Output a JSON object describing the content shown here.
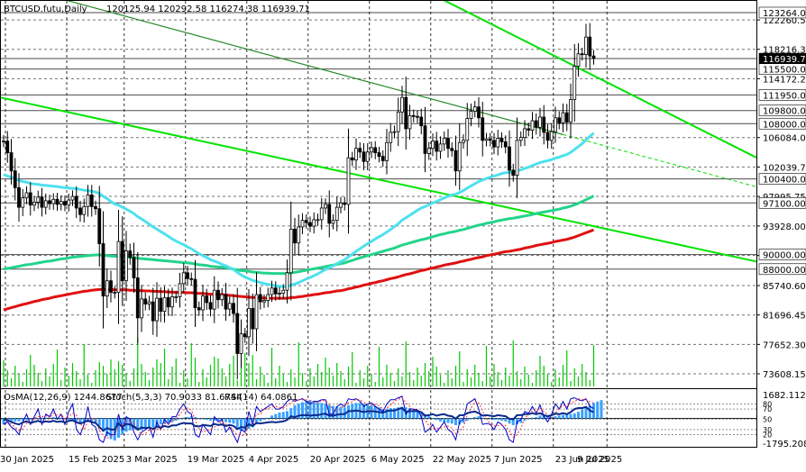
{
  "header": {
    "symbol": "BTCUSD.futu,Daily",
    "ohlc": "120125.94 120292.58 116274.38 116939.71"
  },
  "indicator_header": {
    "osma": "OsMA(12,26,9) 1244.8677",
    "stoch": "Stoch(5,3,3) 70.9033 81.6744",
    "rsi": "RSI(14) 64.0861"
  },
  "colors": {
    "background": "#ffffff",
    "grid": "#000000",
    "bull_candle": "#000000",
    "bear_candle": "#000000",
    "channel": "#00e400",
    "ema50": "#4de1ee",
    "ema144": "#22d48a",
    "ema200": "#e01010",
    "level_line": "#000000",
    "volume": "#00c800",
    "osma_hist": "#3aa0ff",
    "stoch_main": "#0000c8",
    "stoch_signal": "#ff3030",
    "rsi": "#0a2a8a"
  },
  "chart_data": {
    "type": "candlestick",
    "timeframe": "Daily",
    "ylim": [
      72000,
      124500
    ],
    "y_ticks": [
      "122260.50",
      "118216.35",
      "114172.20",
      "106084.00",
      "102039.75",
      "97995.75",
      "93928.00",
      "89883.75",
      "85740.60",
      "81696.45",
      "77652.30",
      "73608.15"
    ],
    "x_ticks": [
      "30 Jan 2025",
      "15 Feb 2025",
      "3 Mar 2025",
      "19 Mar 2025",
      "4 Apr 2025",
      "20 Apr 2025",
      "6 May 2025",
      "22 May 2025",
      "7 Jun 2025",
      "23 Jun 2025",
      "9 Jul 2025"
    ],
    "levels": [
      {
        "label": "123264.00",
        "value": 123264
      },
      {
        "label": "116939.71",
        "value": 116939.71,
        "current": true
      },
      {
        "label": "115500.00",
        "value": 115500
      },
      {
        "label": "111950.00",
        "value": 111950
      },
      {
        "label": "109800.00",
        "value": 109800
      },
      {
        "label": "108000.00",
        "value": 108000
      },
      {
        "label": "100400.00",
        "value": 100400
      },
      {
        "label": "97100.00",
        "value": 97100
      },
      {
        "label": "90000.00",
        "value": 90000
      },
      {
        "label": "88000.00",
        "value": 88000
      }
    ],
    "closes": [
      105600,
      104000,
      101500,
      99200,
      96500,
      97800,
      98500,
      96800,
      97200,
      97900,
      96500,
      97400,
      97000,
      97600,
      96900,
      97300,
      96800,
      97500,
      98000,
      96400,
      95500,
      96600,
      98200,
      96600,
      96300,
      91500,
      84300,
      86400,
      84800,
      84800,
      91800,
      86400,
      90500,
      89600,
      86800,
      81300,
      83900,
      83200,
      83500,
      80900,
      84000,
      82200,
      84100,
      82800,
      84200,
      84200,
      86000,
      87500,
      86700,
      86600,
      82700,
      82400,
      84300,
      83400,
      82500,
      85100,
      83800,
      84500,
      82500,
      83300,
      81900,
      76400,
      79100,
      78700,
      82600,
      79800,
      84500,
      83500,
      83700,
      84500,
      85400,
      84600,
      84700,
      85100,
      87500,
      93500,
      91600,
      93800,
      94700,
      94400,
      93900,
      94800,
      94800,
      96400,
      96900,
      94300,
      94700,
      96500,
      97100,
      96900,
      103300,
      103000,
      104600,
      104100,
      102800,
      104100,
      104700,
      104000,
      103500,
      102900,
      105400,
      106800,
      106900,
      109600,
      111600,
      107300,
      109100,
      109000,
      108900,
      107700,
      103900,
      104600,
      105600,
      104200,
      105200,
      106000,
      104600,
      104300,
      101500,
      105400,
      105700,
      108700,
      109700,
      110300,
      108800,
      105700,
      105900,
      105700,
      104800,
      106000,
      105500,
      104800,
      101600,
      100900,
      105700,
      106100,
      107300,
      107100,
      108400,
      107500,
      108900,
      106800,
      105700,
      106900,
      108800,
      108100,
      109500,
      108200,
      111300,
      115900,
      117600,
      117500,
      119900,
      117300,
      116940
    ],
    "ema50": [
      101000,
      100800,
      100650,
      100450,
      100200,
      100050,
      99950,
      99800,
      99700,
      99650,
      99550,
      99500,
      99450,
      99400,
      99350,
      99250,
      99200,
      99150,
      99100,
      99050,
      98950,
      98850,
      98800,
      98700,
      98600,
      98400,
      98000,
      97700,
      97300,
      96950,
      96800,
      96500,
      96250,
      95950,
      95650,
      95200,
      94900,
      94550,
      94200,
      93800,
      93500,
      93150,
      92850,
      92500,
      92150,
      91850,
      91600,
      91350,
      91050,
      90800,
      90450,
      90100,
      89850,
      89600,
      89300,
      89100,
      88900,
      88650,
      88450,
      88200,
      87950,
      87550,
      87200,
      86900,
      86700,
      86450,
      86300,
      86150,
      86000,
      85900,
      85800,
      85700,
      85650,
      85600,
      85600,
      85800,
      85950,
      86150,
      86400,
      86650,
      86850,
      87100,
      87350,
      87650,
      87950,
      88200,
      88450,
      88750,
      89050,
      89300,
      89700,
      90050,
      90450,
      90800,
      91150,
      91500,
      91800,
      92150,
      92450,
      92750,
      93100,
      93450,
      93850,
      94250,
      94750,
      95050,
      95400,
      95750,
      96100,
      96400,
      96600,
      96850,
      97100,
      97300,
      97550,
      97800,
      98000,
      98200,
      98300,
      98550,
      98800,
      99150,
      99450,
      99750,
      100050,
      100250,
      100450,
      100650,
      100800,
      100950,
      101150,
      101250,
      101300,
      101350,
      101500,
      101650,
      101850,
      102000,
      102250,
      102450,
      102650,
      102800,
      102900,
      103050,
      103250,
      103400,
      103600,
      103750,
      104050,
      104450,
      104850,
      105250,
      105750,
      106250,
      106700
    ],
    "ema144": [
      88000,
      88100,
      88200,
      88300,
      88400,
      88500,
      88600,
      88650,
      88750,
      88850,
      88950,
      89050,
      89100,
      89200,
      89300,
      89400,
      89450,
      89550,
      89650,
      89700,
      89750,
      89800,
      89850,
      89900,
      89950,
      89950,
      89900,
      89850,
      89800,
      89750,
      89750,
      89700,
      89700,
      89650,
      89600,
      89500,
      89450,
      89400,
      89350,
      89300,
      89250,
      89200,
      89150,
      89100,
      89050,
      89000,
      88950,
      88900,
      88850,
      88800,
      88700,
      88600,
      88550,
      88500,
      88400,
      88350,
      88300,
      88250,
      88200,
      88100,
      88000,
      87900,
      87800,
      87750,
      87700,
      87600,
      87550,
      87500,
      87450,
      87450,
      87400,
      87400,
      87400,
      87400,
      87400,
      87500,
      87550,
      87650,
      87750,
      87850,
      87950,
      88050,
      88150,
      88250,
      88350,
      88450,
      88550,
      88650,
      88750,
      88850,
      89050,
      89200,
      89400,
      89550,
      89700,
      89850,
      90000,
      90150,
      90300,
      90450,
      90600,
      90750,
      90900,
      91100,
      91300,
      91450,
      91600,
      91750,
      91900,
      92050,
      92150,
      92300,
      92450,
      92600,
      92750,
      92850,
      93000,
      93100,
      93200,
      93350,
      93450,
      93600,
      93750,
      93900,
      94050,
      94150,
      94300,
      94400,
      94500,
      94650,
      94750,
      94850,
      94950,
      95000,
      95100,
      95200,
      95300,
      95400,
      95500,
      95650,
      95750,
      95850,
      95950,
      96050,
      96150,
      96250,
      96400,
      96500,
      96650,
      96850,
      97050,
      97300,
      97550,
      97800,
      98050
    ],
    "ema200": [
      82400,
      82550,
      82700,
      82850,
      83000,
      83150,
      83250,
      83400,
      83550,
      83650,
      83800,
      83900,
      84000,
      84150,
      84250,
      84350,
      84450,
      84550,
      84650,
      84750,
      84850,
      84950,
      85000,
      85100,
      85150,
      85200,
      85200,
      85200,
      85200,
      85150,
      85150,
      85150,
      85150,
      85100,
      85100,
      85050,
      85050,
      85000,
      85000,
      84950,
      84950,
      84900,
      84900,
      84850,
      84850,
      84800,
      84800,
      84800,
      84750,
      84750,
      84700,
      84650,
      84650,
      84600,
      84550,
      84550,
      84500,
      84500,
      84450,
      84400,
      84350,
      84300,
      84250,
      84200,
      84150,
      84100,
      84100,
      84050,
      84050,
      84000,
      84000,
      84000,
      84000,
      84000,
      84000,
      84100,
      84100,
      84200,
      84250,
      84350,
      84400,
      84500,
      84550,
      84650,
      84750,
      84800,
      84900,
      85000,
      85050,
      85150,
      85300,
      85400,
      85550,
      85650,
      85800,
      85900,
      86050,
      86150,
      86300,
      86400,
      86550,
      86700,
      86800,
      86950,
      87100,
      87250,
      87350,
      87500,
      87650,
      87800,
      87900,
      88050,
      88150,
      88300,
      88400,
      88550,
      88650,
      88750,
      88850,
      89000,
      89100,
      89250,
      89350,
      89500,
      89600,
      89700,
      89850,
      89950,
      90050,
      90150,
      90300,
      90400,
      90450,
      90550,
      90650,
      90750,
      90900,
      91000,
      91100,
      91250,
      91350,
      91450,
      91550,
      91650,
      91800,
      91900,
      92000,
      92100,
      92250,
      92400,
      92600,
      92800,
      93000,
      93200,
      93400
    ],
    "channels": [
      {
        "p1": [
          0,
          111500
        ],
        "p2": [
          154,
          93900
        ],
        "dashed_after": false
      },
      {
        "p1": [
          62,
          139000
        ],
        "p2": [
          154,
          114600
        ],
        "dashed_after": false
      },
      {
        "p1": [
          14,
          125300
        ],
        "p2": [
          146,
          106500
        ],
        "dashed_after": true
      }
    ],
    "indicators": {
      "osma_labels": [
        "1682.1121",
        "-1795.2082"
      ],
      "stoch_levels": [
        "80",
        "70",
        "50",
        "30",
        "20"
      ],
      "osma": [
        -400,
        -300,
        -250,
        -200,
        -200,
        -150,
        -100,
        -100,
        -50,
        0,
        50,
        50,
        50,
        100,
        50,
        0,
        -50,
        -100,
        -150,
        -200,
        -300,
        -300,
        -250,
        -200,
        -250,
        -500,
        -900,
        -1200,
        -1400,
        -1500,
        -1300,
        -1100,
        -900,
        -800,
        -700,
        -800,
        -800,
        -700,
        -600,
        -600,
        -500,
        -400,
        -350,
        -300,
        -250,
        -150,
        -50,
        50,
        100,
        150,
        100,
        0,
        -50,
        -100,
        -150,
        -150,
        -150,
        -200,
        -250,
        -300,
        -350,
        -600,
        -800,
        -800,
        -700,
        -600,
        -400,
        -200,
        -100,
        50,
        200,
        300,
        400,
        450,
        500,
        700,
        900,
        1000,
        1100,
        1200,
        1250,
        1200,
        1100,
        1050,
        1000,
        900,
        850,
        800,
        800,
        750,
        900,
        1000,
        1050,
        1050,
        1000,
        950,
        900,
        850,
        750,
        650,
        650,
        700,
        700,
        750,
        800,
        750,
        700,
        650,
        550,
        450,
        300,
        150,
        0,
        -100,
        -200,
        -250,
        -300,
        -350,
        -450,
        -400,
        -300,
        -150,
        0,
        100,
        150,
        50,
        0,
        -50,
        -100,
        -100,
        -150,
        -200,
        -350,
        -450,
        -400,
        -300,
        -150,
        -50,
        50,
        100,
        200,
        200,
        150,
        100,
        150,
        200,
        250,
        250,
        300,
        350,
        450,
        600,
        750,
        900,
        1050,
        1150,
        1245
      ],
      "stoch": [
        40,
        45,
        35,
        30,
        20,
        45,
        60,
        40,
        55,
        70,
        40,
        60,
        55,
        70,
        50,
        60,
        40,
        65,
        80,
        30,
        20,
        40,
        75,
        40,
        35,
        10,
        5,
        25,
        20,
        20,
        60,
        30,
        55,
        50,
        25,
        10,
        25,
        30,
        35,
        15,
        45,
        30,
        50,
        40,
        55,
        55,
        70,
        80,
        65,
        60,
        20,
        15,
        40,
        30,
        20,
        55,
        45,
        50,
        25,
        35,
        20,
        5,
        30,
        25,
        65,
        40,
        75,
        65,
        70,
        75,
        80,
        70,
        70,
        75,
        85,
        90,
        85,
        88,
        90,
        85,
        80,
        85,
        85,
        88,
        88,
        60,
        60,
        75,
        80,
        75,
        90,
        88,
        90,
        85,
        75,
        80,
        82,
        75,
        70,
        65,
        80,
        88,
        88,
        92,
        95,
        60,
        70,
        70,
        68,
        55,
        25,
        30,
        40,
        25,
        35,
        45,
        30,
        25,
        10,
        45,
        50,
        80,
        85,
        90,
        70,
        40,
        42,
        40,
        30,
        45,
        40,
        30,
        10,
        5,
        45,
        50,
        65,
        62,
        75,
        62,
        78,
        55,
        45,
        60,
        80,
        70,
        85,
        70,
        90,
        92,
        88,
        86,
        90,
        75,
        71
      ],
      "stoch_signal": [
        50,
        45,
        40,
        35,
        28,
        32,
        42,
        48,
        52,
        55,
        55,
        57,
        52,
        62,
        58,
        60,
        50,
        55,
        62,
        58,
        43,
        30,
        45,
        52,
        50,
        28,
        17,
        13,
        17,
        22,
        35,
        37,
        48,
        45,
        43,
        30,
        20,
        22,
        30,
        27,
        32,
        30,
        42,
        40,
        48,
        50,
        60,
        68,
        72,
        68,
        48,
        32,
        25,
        28,
        30,
        35,
        40,
        47,
        40,
        37,
        27,
        20,
        18,
        20,
        40,
        43,
        60,
        60,
        70,
        70,
        75,
        75,
        73,
        72,
        77,
        83,
        87,
        88,
        88,
        88,
        85,
        83,
        83,
        86,
        87,
        79,
        69,
        65,
        72,
        77,
        82,
        84,
        89,
        88,
        83,
        80,
        79,
        79,
        76,
        70,
        72,
        78,
        85,
        89,
        92,
        82,
        75,
        67,
        69,
        64,
        49,
        37,
        32,
        32,
        33,
        35,
        37,
        33,
        22,
        27,
        35,
        58,
        72,
        85,
        82,
        67,
        51,
        41,
        37,
        38,
        38,
        38,
        27,
        15,
        20,
        33,
        53,
        59,
        67,
        66,
        72,
        65,
        59,
        53,
        62,
        70,
        78,
        75,
        82,
        84,
        90,
        89,
        88,
        84,
        82
      ],
      "rsi": [
        50,
        48,
        45,
        42,
        40,
        44,
        46,
        43,
        45,
        47,
        44,
        46,
        45,
        47,
        45,
        46,
        44,
        47,
        48,
        44,
        42,
        44,
        48,
        44,
        43,
        35,
        28,
        33,
        30,
        30,
        42,
        35,
        41,
        40,
        36,
        30,
        34,
        33,
        34,
        31,
        36,
        34,
        37,
        35,
        38,
        38,
        41,
        43,
        42,
        42,
        37,
        36,
        39,
        38,
        37,
        41,
        39,
        40,
        37,
        39,
        37,
        31,
        35,
        34,
        40,
        37,
        43,
        42,
        43,
        44,
        45,
        44,
        45,
        46,
        49,
        56,
        54,
        57,
        58,
        58,
        57,
        58,
        58,
        60,
        61,
        57,
        57,
        59,
        60,
        60,
        66,
        66,
        67,
        66,
        64,
        66,
        66,
        65,
        64,
        63,
        66,
        67,
        67,
        70,
        72,
        64,
        66,
        66,
        66,
        64,
        57,
        58,
        60,
        57,
        59,
        60,
        57,
        56,
        51,
        58,
        58,
        62,
        64,
        65,
        62,
        57,
        58,
        57,
        56,
        58,
        57,
        56,
        51,
        50,
        58,
        58,
        60,
        60,
        62,
        60,
        62,
        58,
        56,
        58,
        61,
        60,
        62,
        60,
        64,
        70,
        72,
        72,
        74,
        67,
        64
      ]
    }
  }
}
